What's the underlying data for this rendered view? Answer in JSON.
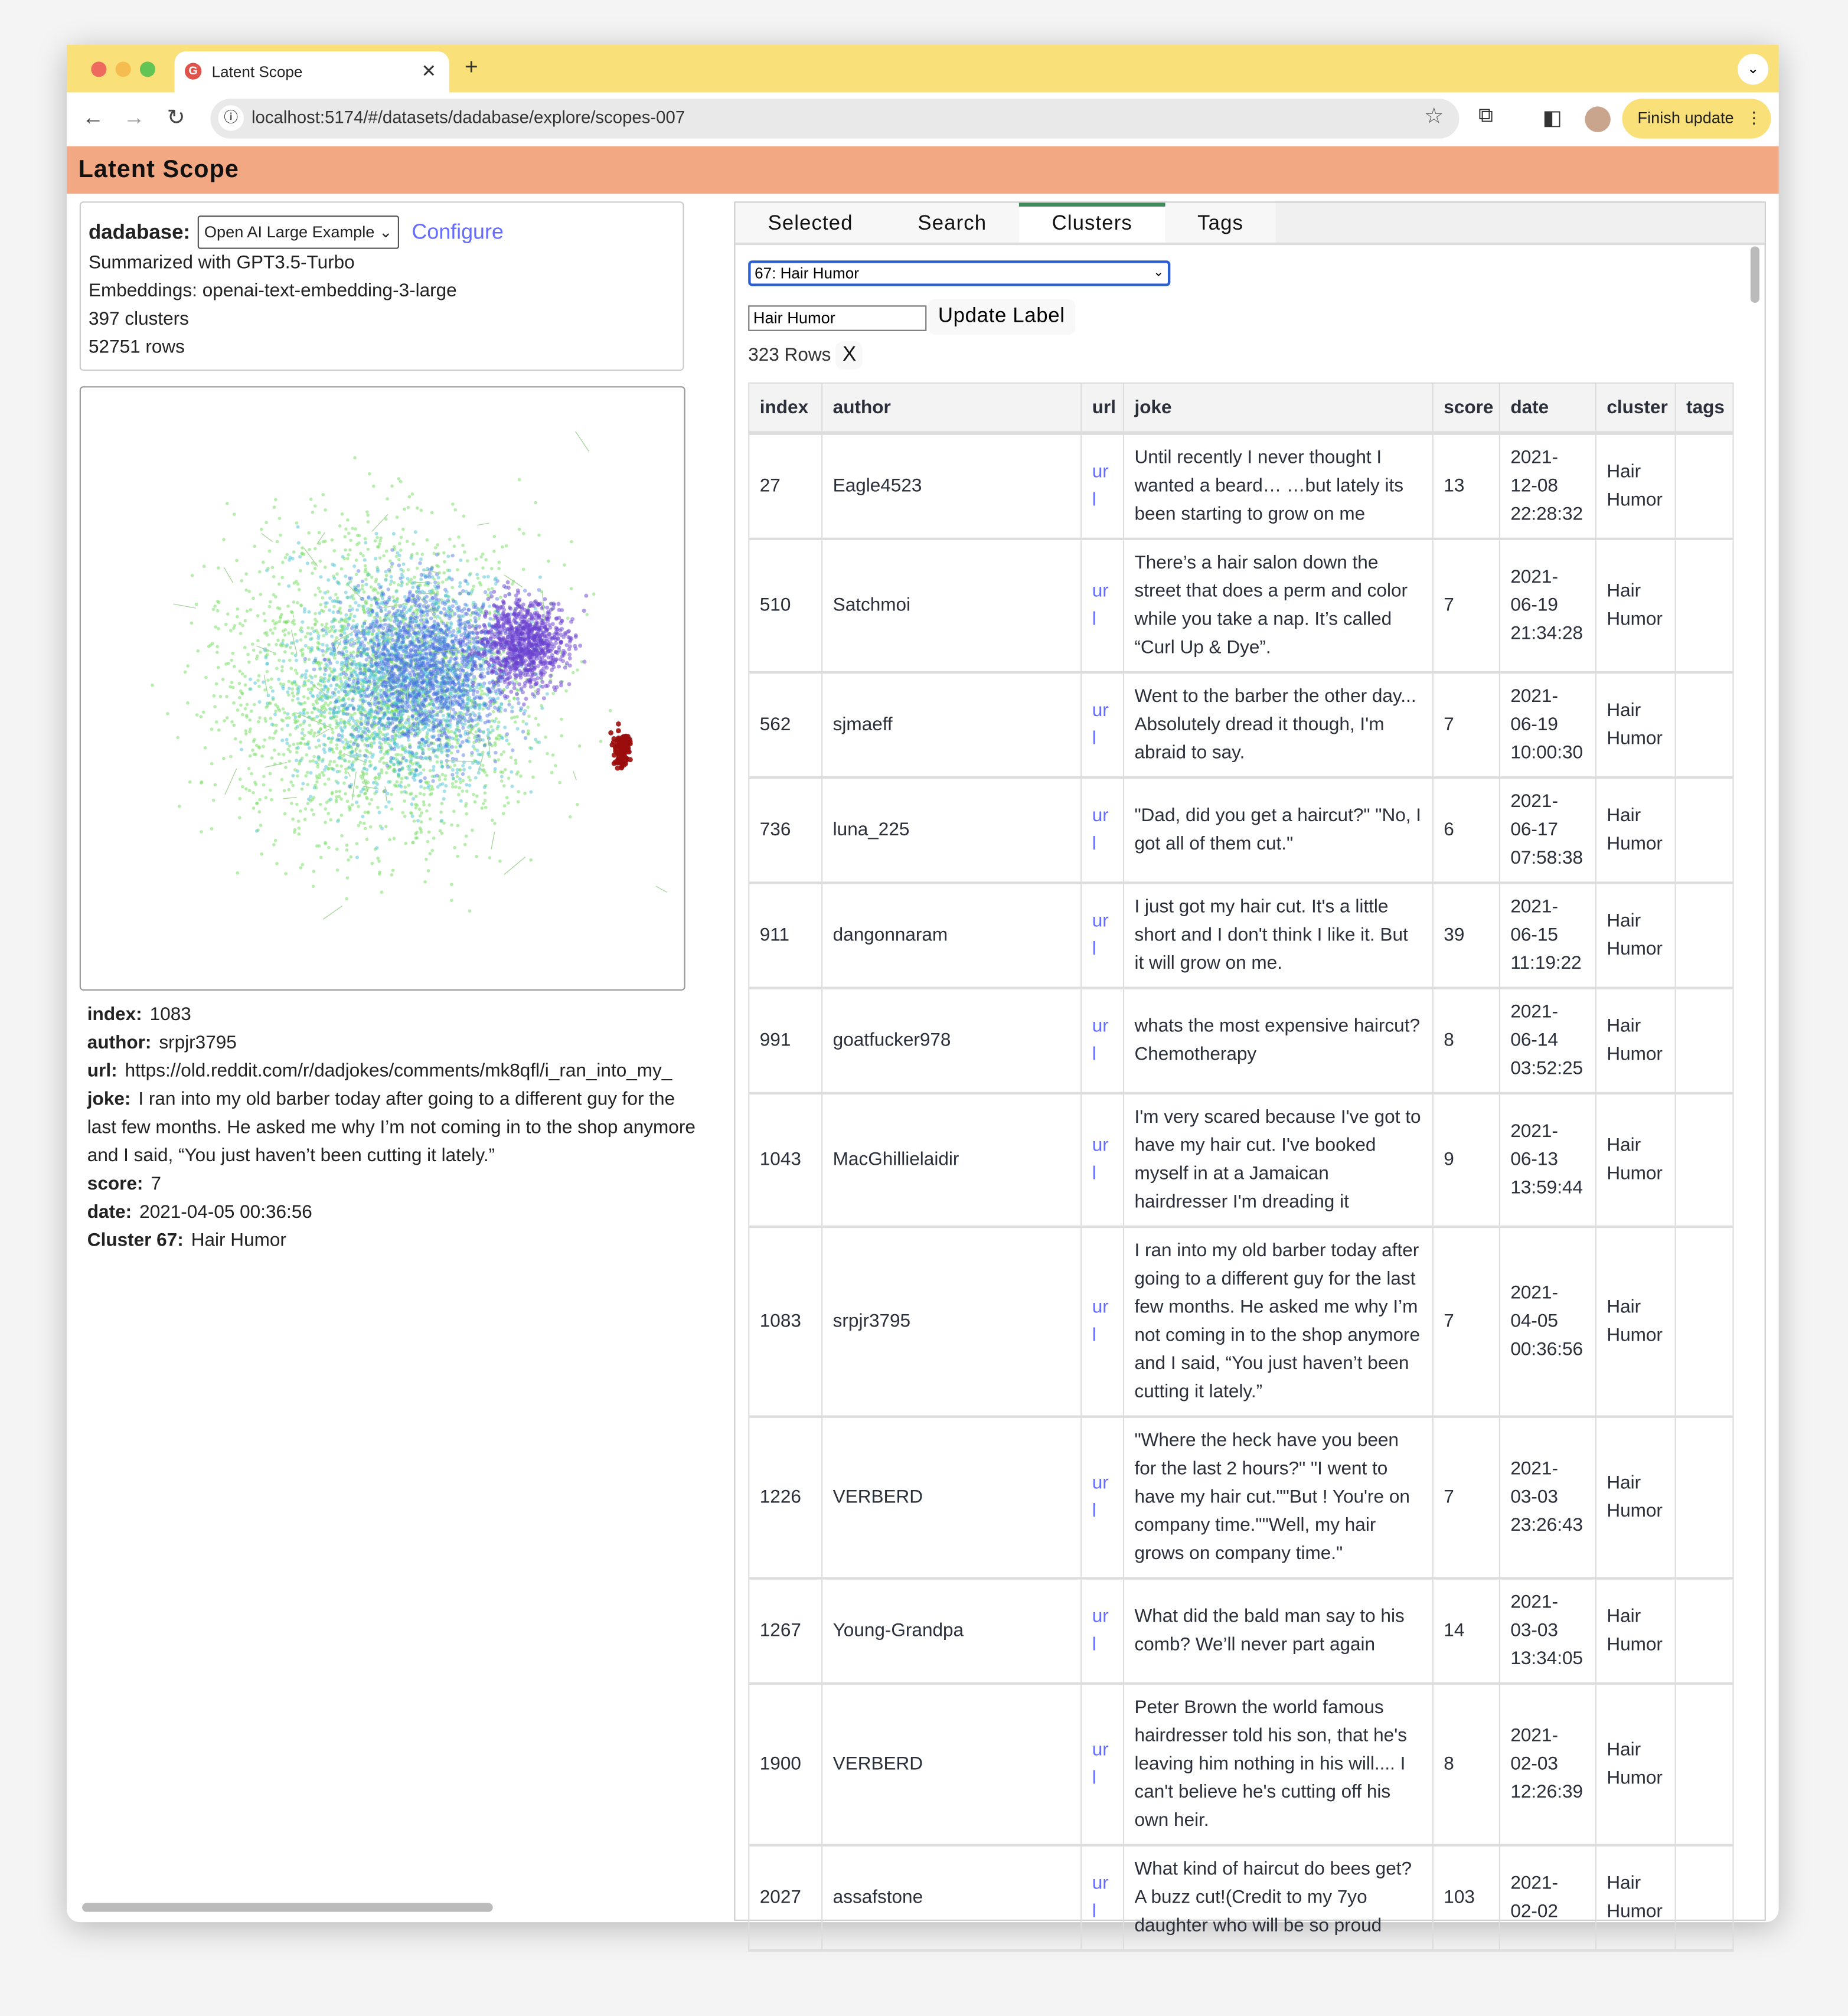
{
  "browser": {
    "tab_title": "Latent Scope",
    "tab_icon": "latent-scope-favicon",
    "url": "localhost:5174/#/datasets/dadabase/explore/scopes-007",
    "finish_update": "Finish update"
  },
  "app": {
    "title": "Latent Scope"
  },
  "dataset": {
    "name": "dadabase:",
    "scope_select": "Open AI Large Example",
    "configure": "Configure",
    "summarized": "Summarized with GPT3.5-Turbo",
    "embeddings": "Embeddings: openai-text-embedding-3-large",
    "clusters": "397 clusters",
    "rows": "52751 rows"
  },
  "scatter": {
    "colors": {
      "outer": "#7ee06a",
      "mid": "#4ec3d4",
      "inner": "#4a6fe0",
      "core": "#6a3fd0",
      "selected": "#9b0d0d"
    }
  },
  "details": {
    "index_label": "index:",
    "index": "1083",
    "author_label": "author:",
    "author": "srpjr3795",
    "url_label": "url:",
    "url": "https://old.reddit.com/r/dadjokes/comments/mk8qfl/i_ran_into_my_",
    "joke_label": "joke:",
    "joke": "I ran into my old barber today after going to a different guy for the last few months. He asked me why I’m not coming in to the shop anymore and I said, “You just haven’t been cutting it lately.”",
    "score_label": "score:",
    "score": "7",
    "date_label": "date:",
    "date": "2021-04-05 00:36:56",
    "cluster_label": "Cluster 67:",
    "cluster": "Hair Humor"
  },
  "tabs": [
    {
      "label": "Selected"
    },
    {
      "label": "Search"
    },
    {
      "label": "Clusters",
      "active": true
    },
    {
      "label": "Tags"
    }
  ],
  "clusters_tab": {
    "selected_cluster": "67: Hair Humor",
    "label_input": "Hair Humor",
    "update_label": "Update Label",
    "row_count": "323 Rows",
    "clear": "X"
  },
  "table": {
    "columns": [
      "index",
      "author",
      "url",
      "joke",
      "score",
      "date",
      "cluster",
      "tags"
    ],
    "rows": [
      {
        "index": "27",
        "author": "Eagle4523",
        "url": "url",
        "joke": "Until recently I never thought I wanted a beard… …but lately its been starting to grow on me",
        "score": "13",
        "date": "2021-12-08 22:28:32",
        "cluster": "Hair Humor",
        "tags": ""
      },
      {
        "index": "510",
        "author": "Satchmoi",
        "url": "url",
        "joke": "There’s a hair salon down the street that does a perm and color while you take a nap. It’s called “Curl Up & Dye”.",
        "score": "7",
        "date": "2021-06-19 21:34:28",
        "cluster": "Hair Humor",
        "tags": ""
      },
      {
        "index": "562",
        "author": "sjmaeff",
        "url": "url",
        "joke": "Went to the barber the other day... Absolutely dread it though, I'm abraid to say.",
        "score": "7",
        "date": "2021-06-19 10:00:30",
        "cluster": "Hair Humor",
        "tags": ""
      },
      {
        "index": "736",
        "author": "luna_225",
        "url": "url",
        "joke": "\"Dad, did you get a haircut?\" \"No, I got all of them cut.\"",
        "score": "6",
        "date": "2021-06-17 07:58:38",
        "cluster": "Hair Humor",
        "tags": ""
      },
      {
        "index": "911",
        "author": "dangonnaram",
        "url": "url",
        "joke": "I just got my hair cut. It's a little short and I don't think I like it. But it will grow on me.",
        "score": "39",
        "date": "2021-06-15 11:19:22",
        "cluster": "Hair Humor",
        "tags": ""
      },
      {
        "index": "991",
        "author": "goatfucker978",
        "url": "url",
        "joke": "whats the most expensive haircut? Chemotherapy",
        "score": "8",
        "date": "2021-06-14 03:52:25",
        "cluster": "Hair Humor",
        "tags": ""
      },
      {
        "index": "1043",
        "author": "MacGhillielaidir",
        "url": "url",
        "joke": "I'm very scared because I've got to have my hair cut. I've booked myself in at a Jamaican hairdresser I'm dreading it",
        "score": "9",
        "date": "2021-06-13 13:59:44",
        "cluster": "Hair Humor",
        "tags": ""
      },
      {
        "index": "1083",
        "author": "srpjr3795",
        "url": "url",
        "joke": "I ran into my old barber today after going to a different guy for the last few months. He asked me why I’m not coming in to the shop anymore and I said, “You just haven’t been cutting it lately.”",
        "score": "7",
        "date": "2021-04-05 00:36:56",
        "cluster": "Hair Humor",
        "tags": ""
      },
      {
        "index": "1226",
        "author": "VERBERD",
        "url": "url",
        "joke": "\"Where the heck have you been for the last 2 hours?\" \"I went to have my hair cut.\"\"But ! You're on company time.\"\"Well, my hair grows on company time.\"",
        "score": "7",
        "date": "2021-03-03 23:26:43",
        "cluster": "Hair Humor",
        "tags": ""
      },
      {
        "index": "1267",
        "author": "Young-Grandpa",
        "url": "url",
        "joke": "What did the bald man say to his comb? We’ll never part again",
        "score": "14",
        "date": "2021-03-03 13:34:05",
        "cluster": "Hair Humor",
        "tags": ""
      },
      {
        "index": "1900",
        "author": "VERBERD",
        "url": "url",
        "joke": "Peter Brown the world famous hairdresser told his son, that he's leaving him nothing in his will.... I can't believe he's cutting off his own heir.",
        "score": "8",
        "date": "2021-02-03 12:26:39",
        "cluster": "Hair Humor",
        "tags": ""
      },
      {
        "index": "2027",
        "author": "assafstone",
        "url": "url",
        "joke": "What kind of haircut do bees get? A buzz cut!(Credit to my 7yo daughter who will be so proud",
        "score": "103",
        "date": "2021-02-02",
        "cluster": "Hair Humor",
        "tags": ""
      }
    ]
  }
}
